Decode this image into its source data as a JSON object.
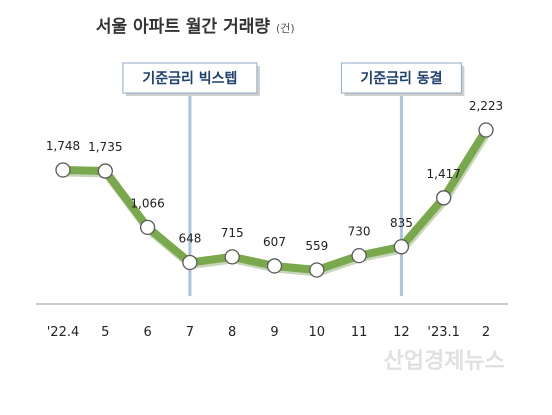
{
  "chart_data": {
    "type": "line",
    "title": "서울 아파트 월간 거래량",
    "unit": "(건)",
    "categories": [
      "'22.4",
      "5",
      "6",
      "7",
      "8",
      "9",
      "10",
      "11",
      "12",
      "'23.1",
      "2"
    ],
    "values": [
      1748,
      1735,
      1066,
      648,
      715,
      607,
      559,
      730,
      835,
      1417,
      2223
    ],
    "value_labels": [
      "1,748",
      "1,735",
      "1,066",
      "648",
      "715",
      "607",
      "559",
      "730",
      "835",
      "1,417",
      "2,223"
    ],
    "ylim": [
      200,
      2400
    ],
    "grid": false,
    "annotations": [
      {
        "category": "7",
        "label": "기준금리 빅스텝"
      },
      {
        "category": "12",
        "label": "기준금리 동결"
      }
    ],
    "colors": {
      "line": "#7aa84c",
      "line_shadow": "#5f8a3a",
      "marker_fill": "#ffffff",
      "marker_stroke": "#5a5a5a",
      "annotation_line": "#a9c4dc",
      "annotation_box_border": "#8fa9c4",
      "axis": "#999999"
    }
  },
  "watermark": "산업경제뉴스"
}
